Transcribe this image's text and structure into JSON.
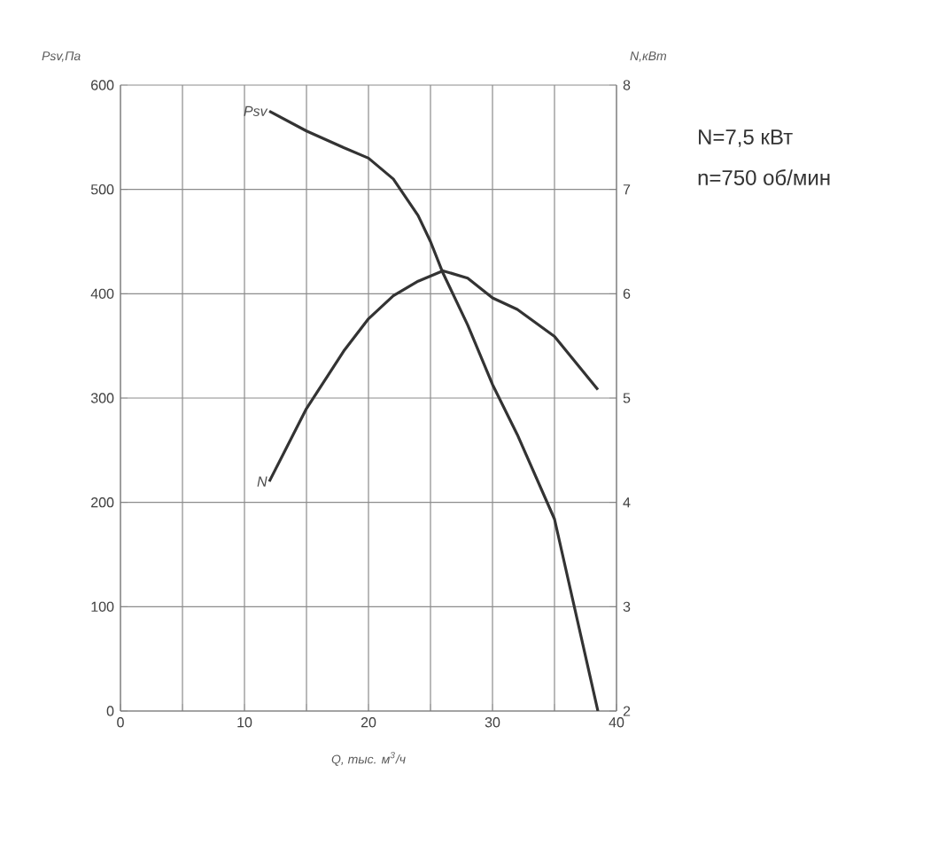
{
  "chart_data": {
    "type": "line",
    "xlabel": "Q, тыс. м$^{3}$/ч",
    "ylabel": "Psv,Па",
    "y2label": "N,кВт",
    "annotations": [
      "N=7,5 кВт",
      "n=750 об/мин"
    ],
    "xlim": [
      0,
      40
    ],
    "xticks": [
      0,
      {
        "value": 5,
        "label": null
      },
      10,
      {
        "value": 15,
        "label": null
      },
      20,
      {
        "value": 25,
        "label": null
      },
      30,
      {
        "value": 35,
        "label": null
      },
      40
    ],
    "ylim": [
      0,
      600
    ],
    "yticks": [
      0,
      100,
      200,
      300,
      400,
      500,
      600
    ],
    "y2lim": [
      2,
      8
    ],
    "y2ticks": [
      2,
      3,
      4,
      5,
      6,
      7,
      8
    ],
    "grid": true,
    "series": [
      {
        "name": "Psv",
        "color": "#333333",
        "x": [
          12,
          15,
          18,
          20,
          22,
          24,
          25,
          26,
          28,
          30,
          32,
          35,
          38.5
        ],
        "values": [
          575,
          556,
          540,
          530,
          510,
          475,
          450,
          420,
          370,
          313,
          265,
          184,
          0
        ]
      },
      {
        "name": "N",
        "color": "#333333",
        "axis": "y2",
        "x": [
          12,
          15,
          18,
          20,
          22,
          24,
          26,
          28,
          30,
          32,
          35,
          38.5
        ],
        "values": [
          4.2,
          4.9,
          5.45,
          5.76,
          5.98,
          6.12,
          6.22,
          6.15,
          5.96,
          5.85,
          5.59,
          5.08
        ]
      }
    ]
  }
}
